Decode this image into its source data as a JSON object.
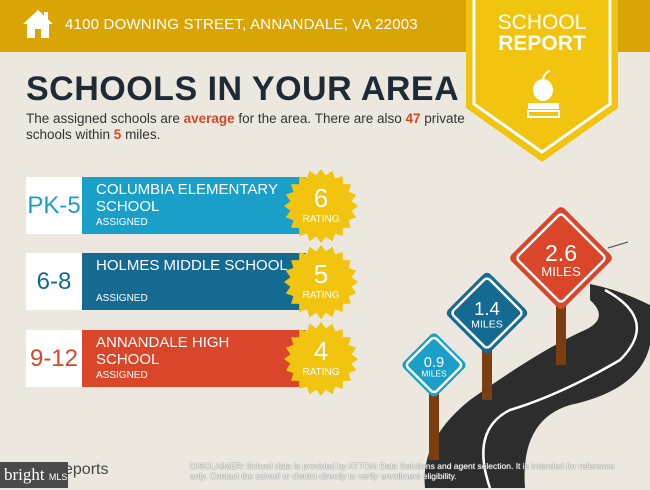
{
  "header": {
    "address": "4100 DOWNING STREET, ANNANDALE, VA 22003",
    "icon": "house-icon",
    "color": "#d9a406"
  },
  "badge": {
    "line1": "SCHOOL",
    "line2": "REPORT",
    "icon": "apple-books-icon"
  },
  "title": "SCHOOLS IN YOUR AREA",
  "description": {
    "p1": "The assigned schools are ",
    "quality": "average",
    "p2": " for the area. There are also ",
    "count": "47",
    "p3": " private schools within ",
    "miles": "5",
    "p4": " miles."
  },
  "schools": [
    {
      "grade": "PK-5",
      "name": "COLUMBIA ELEMENTARY SCHOOL",
      "status": "ASSIGNED",
      "rating": "6",
      "rating_label": "RATING",
      "color": "#1aa0c8"
    },
    {
      "grade": "6-8",
      "name": "HOLMES MIDDLE SCHOOL",
      "status": "ASSIGNED",
      "rating": "5",
      "rating_label": "RATING",
      "color": "#156a92"
    },
    {
      "grade": "9-12",
      "name": "ANNANDALE HIGH SCHOOL",
      "status": "ASSIGNED",
      "rating": "4",
      "rating_label": "RATING",
      "color": "#d9462a"
    }
  ],
  "signs": [
    {
      "distance": "0.9",
      "unit": "MILES",
      "color": "#1aa0c8"
    },
    {
      "distance": "1.4",
      "unit": "MILES",
      "color": "#156a92"
    },
    {
      "distance": "2.6",
      "unit": "MILES",
      "color": "#d9462a"
    }
  ],
  "footer": {
    "logo_text": "bright",
    "logo_suffix": "MLS",
    "reports": "eports",
    "disclaimer_label": "DISCLAIMER:",
    "disclaimer": " School data is provided by ATTOM Data Solutions and agent selection. It is intended for reference only. Contact the school or district directly to verify enrollment eligibility."
  }
}
